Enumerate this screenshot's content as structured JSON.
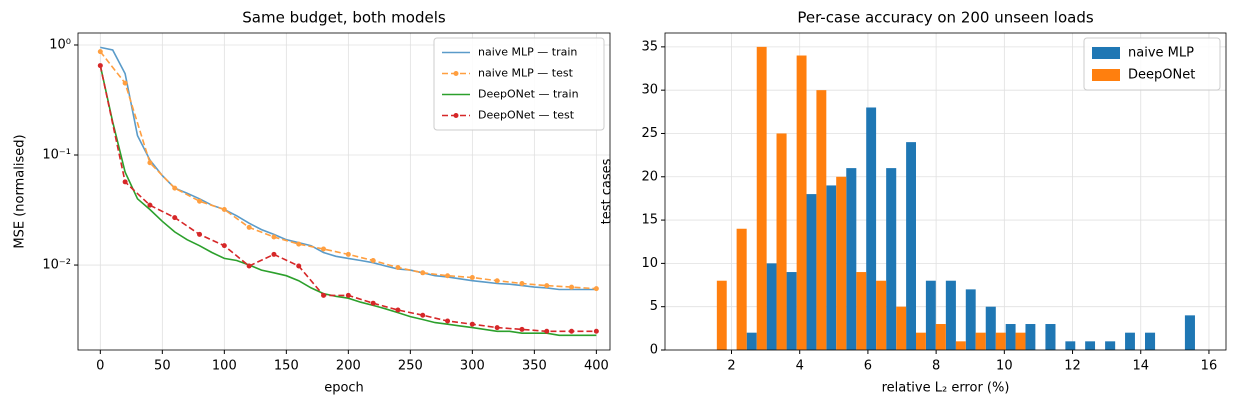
{
  "chart_data": [
    {
      "type": "line",
      "title": "Same budget, both models",
      "xlabel": "epoch",
      "ylabel": "MSE (normalised)",
      "log_y": true,
      "grid": true,
      "legend": "upper right",
      "xlim": [
        -18,
        411
      ],
      "xticks": [
        0,
        50,
        100,
        150,
        200,
        250,
        300,
        350,
        400
      ],
      "ylim": [
        0.00169,
        1.285
      ],
      "yticks": [
        {
          "value": 0.01,
          "label": "10⁻²"
        },
        {
          "value": 0.1,
          "label": "10⁻¹"
        },
        {
          "value": 1,
          "label": "10⁰"
        }
      ],
      "series": [
        {
          "name": "naive MLP — train",
          "color": "#5a9bc9",
          "linestyle": "solid",
          "marker": false,
          "x": [
            0,
            10,
            20,
            30,
            40,
            50,
            60,
            70,
            80,
            90,
            100,
            110,
            120,
            130,
            140,
            150,
            160,
            170,
            180,
            190,
            200,
            210,
            220,
            230,
            240,
            250,
            260,
            270,
            280,
            290,
            300,
            310,
            320,
            330,
            340,
            350,
            360,
            370,
            380,
            390,
            400
          ],
          "values": [
            0.95,
            0.9,
            0.55,
            0.15,
            0.09,
            0.065,
            0.05,
            0.045,
            0.04,
            0.035,
            0.032,
            0.028,
            0.024,
            0.021,
            0.019,
            0.017,
            0.016,
            0.015,
            0.013,
            0.012,
            0.0115,
            0.011,
            0.0105,
            0.0098,
            0.0092,
            0.009,
            0.0085,
            0.008,
            0.0078,
            0.0075,
            0.0072,
            0.007,
            0.0068,
            0.0067,
            0.0065,
            0.0063,
            0.0062,
            0.006,
            0.006,
            0.006,
            0.006
          ]
        },
        {
          "name": "naive MLP — test",
          "color": "#ff9f40",
          "linestyle": "dashed",
          "marker": true,
          "x": [
            0,
            20,
            40,
            60,
            80,
            100,
            120,
            140,
            160,
            180,
            200,
            220,
            240,
            260,
            280,
            300,
            320,
            340,
            360,
            380,
            400
          ],
          "values": [
            0.87,
            0.45,
            0.085,
            0.05,
            0.038,
            0.032,
            0.022,
            0.018,
            0.0155,
            0.014,
            0.0125,
            0.011,
            0.0095,
            0.0085,
            0.008,
            0.0077,
            0.0072,
            0.0068,
            0.0065,
            0.0063,
            0.0061
          ]
        },
        {
          "name": "DeepONet — train",
          "color": "#2ca02c",
          "linestyle": "solid",
          "marker": false,
          "x": [
            0,
            10,
            20,
            30,
            40,
            50,
            60,
            70,
            80,
            90,
            100,
            110,
            120,
            130,
            140,
            150,
            160,
            170,
            180,
            190,
            200,
            210,
            220,
            230,
            240,
            250,
            260,
            270,
            280,
            290,
            300,
            310,
            320,
            330,
            340,
            350,
            360,
            370,
            380,
            390,
            400
          ],
          "values": [
            0.65,
            0.2,
            0.07,
            0.04,
            0.032,
            0.025,
            0.02,
            0.017,
            0.015,
            0.013,
            0.0115,
            0.011,
            0.01,
            0.009,
            0.0085,
            0.008,
            0.0072,
            0.0062,
            0.0055,
            0.0052,
            0.005,
            0.0046,
            0.0043,
            0.004,
            0.0037,
            0.0034,
            0.0032,
            0.003,
            0.0029,
            0.0028,
            0.0027,
            0.0026,
            0.0025,
            0.0025,
            0.0024,
            0.0024,
            0.0024,
            0.0023,
            0.0023,
            0.0023,
            0.0023
          ]
        },
        {
          "name": "DeepONet — test",
          "color": "#d62728",
          "linestyle": "dashed",
          "marker": true,
          "x": [
            0,
            20,
            40,
            60,
            80,
            100,
            120,
            140,
            160,
            180,
            200,
            220,
            240,
            260,
            280,
            300,
            320,
            340,
            360,
            380,
            400
          ],
          "values": [
            0.65,
            0.057,
            0.035,
            0.027,
            0.019,
            0.015,
            0.0098,
            0.0125,
            0.0098,
            0.0053,
            0.0053,
            0.0045,
            0.0039,
            0.0035,
            0.0031,
            0.0029,
            0.0027,
            0.0026,
            0.0025,
            0.0025,
            0.0025
          ]
        }
      ]
    },
    {
      "type": "histogram",
      "title": "Per-case accuracy on 200 unseen loads",
      "xlabel": "relative L₂ error (%)",
      "ylabel": "test cases",
      "grid": true,
      "legend": "upper right",
      "xlim": [
        0.05,
        16.5
      ],
      "xticks": [
        2,
        4,
        6,
        8,
        10,
        12,
        14,
        16
      ],
      "ylim": [
        0,
        36.6
      ],
      "yticks": [
        0,
        5,
        10,
        15,
        20,
        25,
        30,
        35
      ],
      "bins": [
        1.57,
        2.15,
        2.74,
        3.32,
        3.91,
        4.49,
        5.07,
        5.66,
        6.24,
        6.83,
        7.41,
        7.99,
        8.58,
        9.16,
        9.75,
        10.33,
        10.91,
        11.5,
        12.08,
        12.66,
        13.25,
        13.83,
        14.42,
        15.0,
        15.59
      ],
      "series": [
        {
          "name": "naive MLP",
          "color": "#1f77b4",
          "values": [
            0,
            2,
            10,
            9,
            18,
            19,
            21,
            28,
            21,
            24,
            8,
            8,
            7,
            5,
            3,
            3,
            3,
            1,
            1,
            1,
            2,
            2,
            0,
            4
          ]
        },
        {
          "name": "DeepONet",
          "color": "#ff7f0e",
          "values": [
            8,
            14,
            35,
            25,
            34,
            30,
            20,
            9,
            8,
            5,
            2,
            3,
            1,
            2,
            2,
            2,
            0,
            0,
            0,
            0,
            0,
            0,
            0,
            0
          ]
        }
      ]
    }
  ]
}
